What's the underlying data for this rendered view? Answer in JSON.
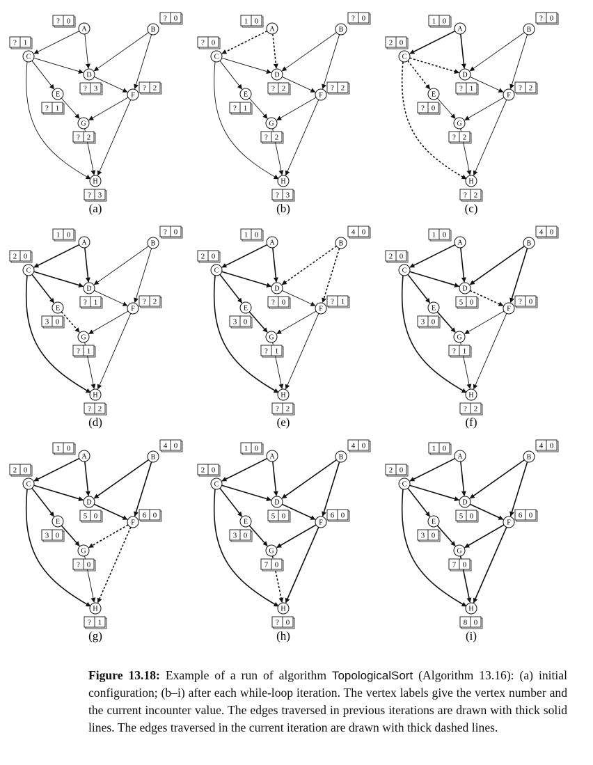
{
  "figure": {
    "caption_label": "Figure 13.18:",
    "caption_pre": "Example of a run of algorithm",
    "caption_algo": "TopologicalSort",
    "caption_post": "(Algorithm 13.16): (a) initial configuration; (b–i) after each while-loop iteration.  The vertex labels give the vertex number and the current incounter value.  The edges traversed in previous iterations are drawn with thick solid lines.  The edges traversed in the current iteration are drawn with thick dashed lines."
  },
  "vertices": [
    "A",
    "B",
    "C",
    "D",
    "E",
    "F",
    "G",
    "H"
  ],
  "edges": [
    [
      "A",
      "C"
    ],
    [
      "A",
      "D"
    ],
    [
      "B",
      "D"
    ],
    [
      "B",
      "F"
    ],
    [
      "C",
      "D"
    ],
    [
      "C",
      "E"
    ],
    [
      "C",
      "H"
    ],
    [
      "D",
      "F"
    ],
    [
      "E",
      "G"
    ],
    [
      "F",
      "G"
    ],
    [
      "F",
      "H"
    ],
    [
      "G",
      "H"
    ]
  ],
  "panels": [
    {
      "label": "(a)",
      "labels": {
        "A": [
          "?",
          "0"
        ],
        "B": [
          "?",
          "0"
        ],
        "C": [
          "?",
          "1"
        ],
        "D": [
          "?",
          "3"
        ],
        "E": [
          "?",
          "1"
        ],
        "F": [
          "?",
          "2"
        ],
        "G": [
          "?",
          "2"
        ],
        "H": [
          "?",
          "3"
        ]
      },
      "solid": [],
      "dashed": []
    },
    {
      "label": "(b)",
      "labels": {
        "A": [
          "1",
          "0"
        ],
        "B": [
          "?",
          "0"
        ],
        "C": [
          "?",
          "0"
        ],
        "D": [
          "?",
          "2"
        ],
        "E": [
          "?",
          "1"
        ],
        "F": [
          "?",
          "2"
        ],
        "G": [
          "?",
          "2"
        ],
        "H": [
          "?",
          "3"
        ]
      },
      "solid": [],
      "dashed": [
        [
          "A",
          "C"
        ],
        [
          "A",
          "D"
        ]
      ]
    },
    {
      "label": "(c)",
      "labels": {
        "A": [
          "1",
          "0"
        ],
        "B": [
          "?",
          "0"
        ],
        "C": [
          "2",
          "0"
        ],
        "D": [
          "?",
          "1"
        ],
        "E": [
          "?",
          "0"
        ],
        "F": [
          "?",
          "2"
        ],
        "G": [
          "?",
          "2"
        ],
        "H": [
          "?",
          "2"
        ]
      },
      "solid": [
        [
          "A",
          "C"
        ],
        [
          "A",
          "D"
        ]
      ],
      "dashed": [
        [
          "C",
          "D"
        ],
        [
          "C",
          "E"
        ],
        [
          "C",
          "H"
        ]
      ]
    },
    {
      "label": "(d)",
      "labels": {
        "A": [
          "1",
          "0"
        ],
        "B": [
          "?",
          "0"
        ],
        "C": [
          "2",
          "0"
        ],
        "D": [
          "?",
          "1"
        ],
        "E": [
          "3",
          "0"
        ],
        "F": [
          "?",
          "2"
        ],
        "G": [
          "?",
          "1"
        ],
        "H": [
          "?",
          "2"
        ]
      },
      "solid": [
        [
          "A",
          "C"
        ],
        [
          "A",
          "D"
        ],
        [
          "C",
          "D"
        ],
        [
          "C",
          "E"
        ],
        [
          "C",
          "H"
        ]
      ],
      "dashed": [
        [
          "E",
          "G"
        ]
      ]
    },
    {
      "label": "(e)",
      "labels": {
        "A": [
          "1",
          "0"
        ],
        "B": [
          "4",
          "0"
        ],
        "C": [
          "2",
          "0"
        ],
        "D": [
          "?",
          "0"
        ],
        "E": [
          "3",
          "0"
        ],
        "F": [
          "?",
          "1"
        ],
        "G": [
          "?",
          "1"
        ],
        "H": [
          "?",
          "2"
        ]
      },
      "solid": [
        [
          "A",
          "C"
        ],
        [
          "A",
          "D"
        ],
        [
          "C",
          "D"
        ],
        [
          "C",
          "E"
        ],
        [
          "C",
          "H"
        ],
        [
          "E",
          "G"
        ]
      ],
      "dashed": [
        [
          "B",
          "D"
        ],
        [
          "B",
          "F"
        ]
      ]
    },
    {
      "label": "(f)",
      "labels": {
        "A": [
          "1",
          "0"
        ],
        "B": [
          "4",
          "0"
        ],
        "C": [
          "2",
          "0"
        ],
        "D": [
          "5",
          "0"
        ],
        "E": [
          "3",
          "0"
        ],
        "F": [
          "?",
          "0"
        ],
        "G": [
          "?",
          "1"
        ],
        "H": [
          "?",
          "2"
        ]
      },
      "solid": [
        [
          "A",
          "C"
        ],
        [
          "A",
          "D"
        ],
        [
          "C",
          "D"
        ],
        [
          "C",
          "E"
        ],
        [
          "C",
          "H"
        ],
        [
          "E",
          "G"
        ],
        [
          "B",
          "D"
        ],
        [
          "B",
          "F"
        ]
      ],
      "dashed": [
        [
          "D",
          "F"
        ]
      ]
    },
    {
      "label": "(g)",
      "labels": {
        "A": [
          "1",
          "0"
        ],
        "B": [
          "4",
          "0"
        ],
        "C": [
          "2",
          "0"
        ],
        "D": [
          "5",
          "0"
        ],
        "E": [
          "3",
          "0"
        ],
        "F": [
          "6",
          "0"
        ],
        "G": [
          "?",
          "0"
        ],
        "H": [
          "?",
          "1"
        ]
      },
      "solid": [
        [
          "A",
          "C"
        ],
        [
          "A",
          "D"
        ],
        [
          "C",
          "D"
        ],
        [
          "C",
          "E"
        ],
        [
          "C",
          "H"
        ],
        [
          "E",
          "G"
        ],
        [
          "B",
          "D"
        ],
        [
          "B",
          "F"
        ],
        [
          "D",
          "F"
        ]
      ],
      "dashed": [
        [
          "F",
          "G"
        ],
        [
          "F",
          "H"
        ]
      ]
    },
    {
      "label": "(h)",
      "labels": {
        "A": [
          "1",
          "0"
        ],
        "B": [
          "4",
          "0"
        ],
        "C": [
          "2",
          "0"
        ],
        "D": [
          "5",
          "0"
        ],
        "E": [
          "3",
          "0"
        ],
        "F": [
          "6",
          "0"
        ],
        "G": [
          "7",
          "0"
        ],
        "H": [
          "?",
          "0"
        ]
      },
      "solid": [
        [
          "A",
          "C"
        ],
        [
          "A",
          "D"
        ],
        [
          "C",
          "D"
        ],
        [
          "C",
          "E"
        ],
        [
          "C",
          "H"
        ],
        [
          "E",
          "G"
        ],
        [
          "B",
          "D"
        ],
        [
          "B",
          "F"
        ],
        [
          "D",
          "F"
        ],
        [
          "F",
          "G"
        ],
        [
          "F",
          "H"
        ]
      ],
      "dashed": [
        [
          "G",
          "H"
        ]
      ]
    },
    {
      "label": "(i)",
      "labels": {
        "A": [
          "1",
          "0"
        ],
        "B": [
          "4",
          "0"
        ],
        "C": [
          "2",
          "0"
        ],
        "D": [
          "5",
          "0"
        ],
        "E": [
          "3",
          "0"
        ],
        "F": [
          "6",
          "0"
        ],
        "G": [
          "7",
          "0"
        ],
        "H": [
          "8",
          "0"
        ]
      },
      "solid": [
        [
          "A",
          "C"
        ],
        [
          "A",
          "D"
        ],
        [
          "C",
          "D"
        ],
        [
          "C",
          "E"
        ],
        [
          "C",
          "H"
        ],
        [
          "E",
          "G"
        ],
        [
          "B",
          "D"
        ],
        [
          "B",
          "F"
        ],
        [
          "D",
          "F"
        ],
        [
          "F",
          "G"
        ],
        [
          "F",
          "H"
        ],
        [
          "G",
          "H"
        ]
      ],
      "dashed": []
    }
  ]
}
